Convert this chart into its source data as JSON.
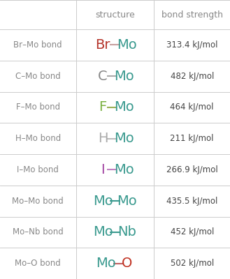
{
  "rows": [
    {
      "label": "Br–Mo bond",
      "elem1": "Br",
      "elem2": "Mo",
      "color1": "#b5342a",
      "color2": "#3a9a8f",
      "bond_color": "#c8a0a0",
      "strength": "313.4 kJ/mol"
    },
    {
      "label": "C–Mo bond",
      "elem1": "C",
      "elem2": "Mo",
      "color1": "#888888",
      "color2": "#3a9a8f",
      "bond_color": "#aaaaaa",
      "strength": "482 kJ/mol"
    },
    {
      "label": "F–Mo bond",
      "elem1": "F",
      "elem2": "Mo",
      "color1": "#7ab040",
      "color2": "#3a9a8f",
      "bond_color": "#99b055",
      "strength": "464 kJ/mol"
    },
    {
      "label": "H–Mo bond",
      "elem1": "H",
      "elem2": "Mo",
      "color1": "#aaaaaa",
      "color2": "#3a9a8f",
      "bond_color": "#bbbbbb",
      "strength": "211 kJ/mol"
    },
    {
      "label": "I–Mo bond",
      "elem1": "I",
      "elem2": "Mo",
      "color1": "#a040a0",
      "color2": "#3a9a8f",
      "bond_color": "#c080c0",
      "strength": "266.9 kJ/mol"
    },
    {
      "label": "Mo–Mo bond",
      "elem1": "Mo",
      "elem2": "Mo",
      "color1": "#3a9a8f",
      "color2": "#3a9a8f",
      "bond_color": "#3a9a8f",
      "strength": "435.5 kJ/mol"
    },
    {
      "label": "Mo–Nb bond",
      "elem1": "Mo",
      "elem2": "Nb",
      "color1": "#3a9a8f",
      "color2": "#3a9a8f",
      "bond_color": "#3a9a8f",
      "strength": "452 kJ/mol"
    },
    {
      "label": "Mo–O bond",
      "elem1": "Mo",
      "elem2": "O",
      "color1": "#3a9a8f",
      "color2": "#c03020",
      "bond_color": "#c06060",
      "strength": "502 kJ/mol"
    }
  ],
  "header_color": "#888888",
  "label_color": "#888888",
  "strength_color": "#444444",
  "bg_color": "#ffffff",
  "grid_color": "#cccccc",
  "figsize": [
    3.29,
    4.0
  ],
  "dpi": 100,
  "structure_fontsize": 14,
  "label_fontsize": 8.5,
  "header_fontsize": 9,
  "strength_fontsize": 8.5
}
